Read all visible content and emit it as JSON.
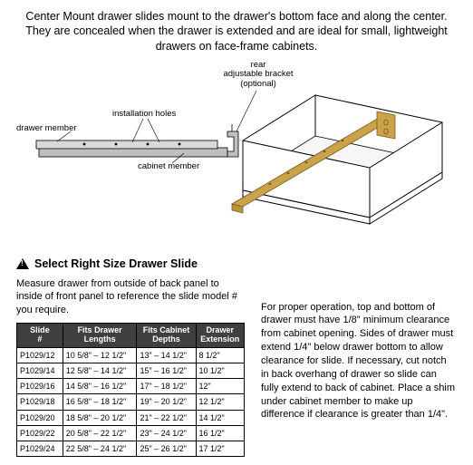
{
  "intro": "Center Mount drawer slides mount to the drawer's bottom face and along the center. They are concealed when the drawer is extended and are ideal for small, lightweight drawers on face-frame cabinets.",
  "labels": {
    "rear_bracket_l1": "rear",
    "rear_bracket_l2": "adjustable bracket",
    "rear_bracket_l3": "(optional)",
    "drawer_member": "drawer member",
    "installation_holes": "installation holes",
    "cabinet_member": "cabinet member"
  },
  "diagram": {
    "slide_fill": "#bfbfbf",
    "slide_stroke": "#000000",
    "drawer_stroke": "#000000",
    "drawer_fill": "#ffffff",
    "rail_fill": "#c9a24a",
    "rail_stroke": "#7a5b1f",
    "bracket_fill": "#c9a24a",
    "label_line": "#000000"
  },
  "section_heading": "Select Right Size Drawer Slide",
  "measure_text": "Measure drawer from outside of back panel to inside of front panel to reference the slide model # you require.",
  "right_text": "For proper operation, top and bottom of drawer must have 1/8\" minimum clearance from cabinet opening. Sides of drawer must extend 1/4\" below drawer bottom to allow clearance for slide. If necessary, cut notch in back overhang of drawer so slide can fully extend to back of cabinet. Place a shim under cabinet member to make up difference if clearance is greater than 1/4\".",
  "table": {
    "header_bg": "#404040",
    "header_fg": "#ffffff",
    "columns": [
      "Slide #",
      "Fits Drawer Lengths",
      "Fits Cabinet Depths",
      "Drawer Extension"
    ],
    "rows": [
      [
        "P1029/12",
        "10 5/8\" – 12 1/2\"",
        "13\" – 14 1/2\"",
        "8 1/2\""
      ],
      [
        "P1029/14",
        "12 5/8\" – 14 1/2\"",
        "15\" – 16 1/2\"",
        "10 1/2\""
      ],
      [
        "P1029/16",
        "14 5/8\" – 16 1/2\"",
        "17\" – 18 1/2\"",
        "12\""
      ],
      [
        "P1029/18",
        "16 5/8\" – 18 1/2\"",
        "19\" – 20 1/2\"",
        "12 1/2\""
      ],
      [
        "P1029/20",
        "18 5/8\" – 20 1/2\"",
        "21\" – 22 1/2\"",
        "14 1/2\""
      ],
      [
        "P1029/22",
        "20 5/8\" – 22 1/2\"",
        "23\" – 24 1/2\"",
        "16 1/2\""
      ],
      [
        "P1029/24",
        "22 5/8\" – 24 1/2\"",
        "25\" – 26 1/2\"",
        "17 1/2\""
      ]
    ]
  }
}
